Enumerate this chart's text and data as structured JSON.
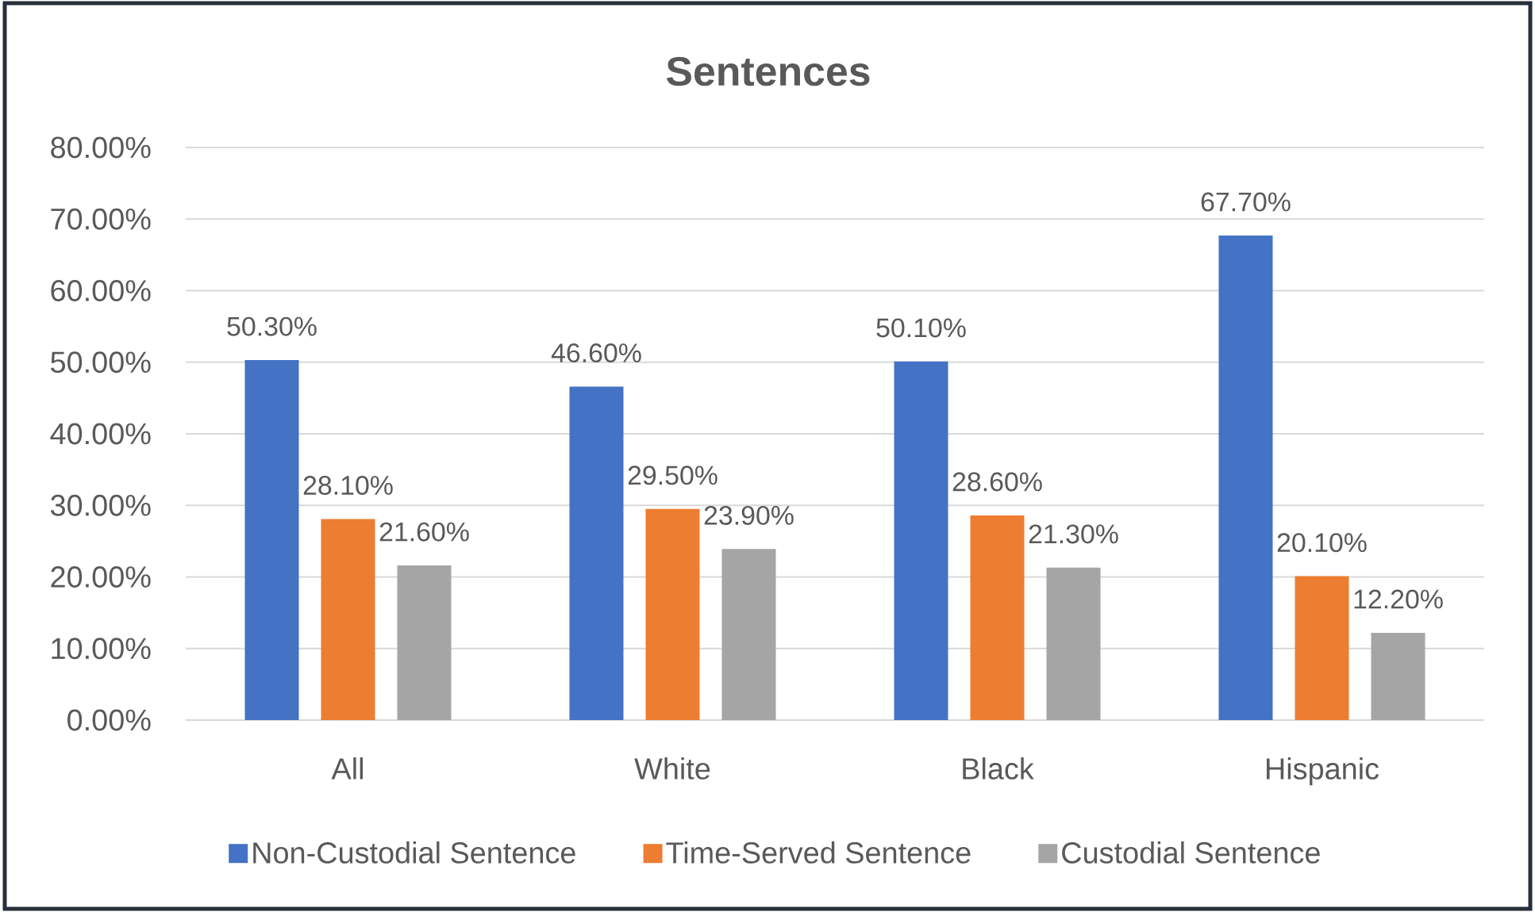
{
  "chart_data": {
    "type": "bar",
    "title": "Sentences",
    "categories": [
      "All",
      "White",
      "Black",
      "Hispanic"
    ],
    "series": [
      {
        "name": "Non-Custodial Sentence",
        "color": "#4472c4",
        "values": [
          50.3,
          46.6,
          50.1,
          67.7
        ],
        "value_labels": [
          "50.30%",
          "46.60%",
          "50.10%",
          "67.70%"
        ]
      },
      {
        "name": "Time-Served Sentence",
        "color": "#ed7d31",
        "values": [
          28.1,
          29.5,
          28.6,
          20.1
        ],
        "value_labels": [
          "28.10%",
          "29.50%",
          "28.60%",
          "20.10%"
        ]
      },
      {
        "name": "Custodial Sentence",
        "color": "#a5a5a5",
        "values": [
          21.6,
          23.9,
          21.3,
          12.2
        ],
        "value_labels": [
          "21.60%",
          "23.90%",
          "21.30%",
          "12.20%"
        ]
      }
    ],
    "ylim": [
      0,
      80
    ],
    "yticks": [
      {
        "value": 0,
        "label": "0.00%"
      },
      {
        "value": 10,
        "label": "10.00%"
      },
      {
        "value": 20,
        "label": "20.00%"
      },
      {
        "value": 30,
        "label": "30.00%"
      },
      {
        "value": 40,
        "label": "40.00%"
      },
      {
        "value": 50,
        "label": "50.00%"
      },
      {
        "value": 60,
        "label": "60.00%"
      },
      {
        "value": 70,
        "label": "70.00%"
      },
      {
        "value": 80,
        "label": "80.00%"
      }
    ],
    "grid": "y",
    "legend": "bottom"
  }
}
